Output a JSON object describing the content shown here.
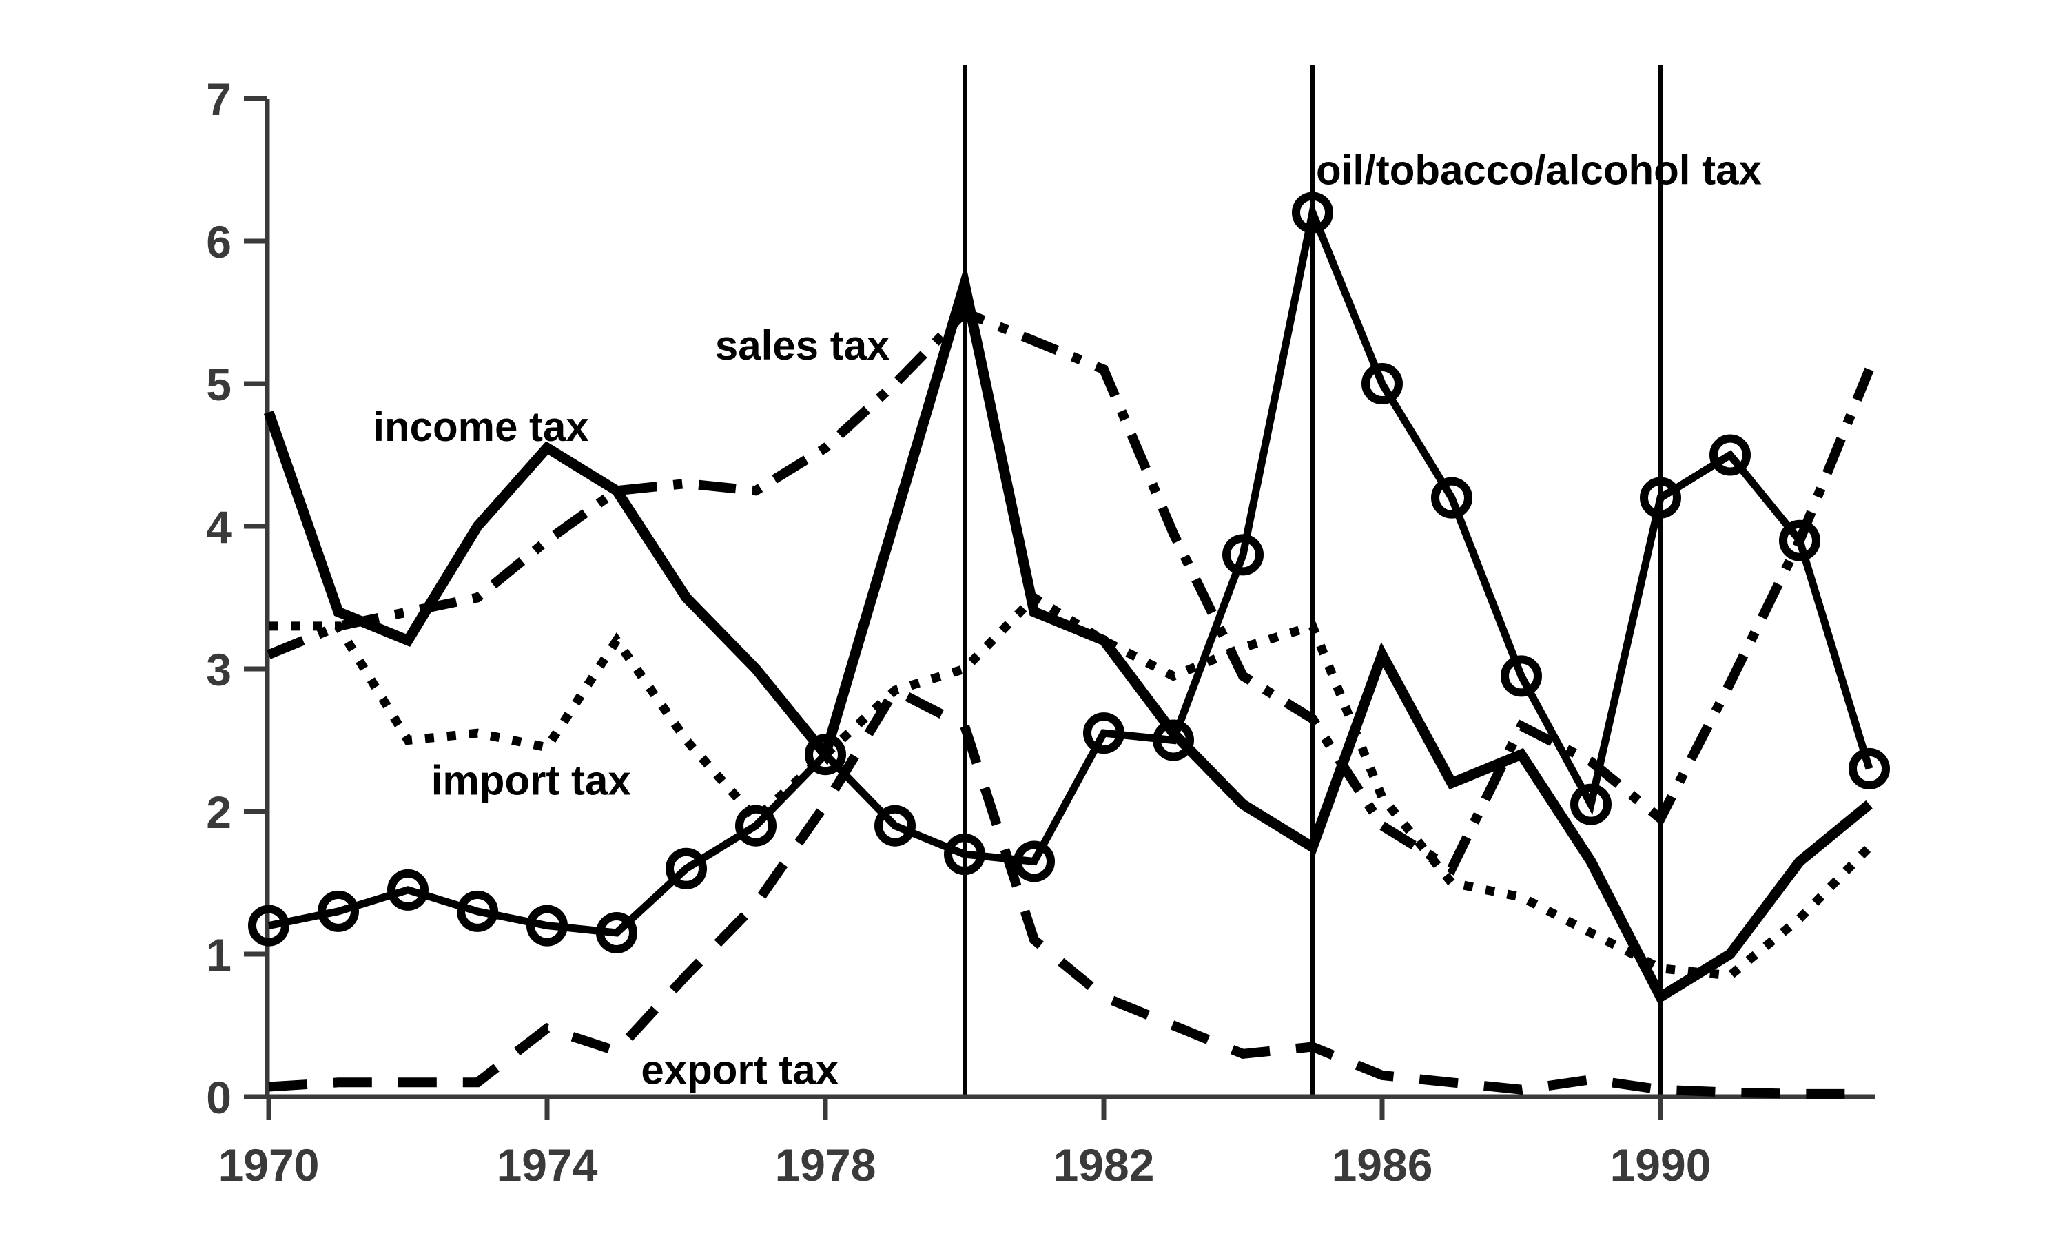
{
  "chart_data": {
    "type": "line",
    "title": "",
    "xlabel": "",
    "ylabel": "",
    "x": [
      1970,
      1971,
      1972,
      1973,
      1974,
      1975,
      1976,
      1977,
      1978,
      1979,
      1980,
      1981,
      1982,
      1983,
      1984,
      1985,
      1986,
      1987,
      1988,
      1989,
      1990,
      1991,
      1992,
      1993
    ],
    "series": [
      {
        "name": "income_tax",
        "label": "income tax",
        "linestyle": "solid",
        "marker": "none",
        "stroke_width": 15,
        "values": [
          4.8,
          3.4,
          3.2,
          4.0,
          4.55,
          4.25,
          3.5,
          3.0,
          2.4,
          4.05,
          5.7,
          3.4,
          3.2,
          2.55,
          2.05,
          1.75,
          3.1,
          2.2,
          2.4,
          1.65,
          0.7,
          1.0,
          1.65,
          2.05
        ]
      },
      {
        "name": "sales_tax",
        "label": "sales tax",
        "linestyle": "dash-dot",
        "marker": "none",
        "stroke_width": 14,
        "values": [
          3.1,
          3.3,
          3.4,
          3.5,
          3.9,
          4.25,
          4.3,
          4.25,
          4.55,
          5.0,
          5.5,
          5.3,
          5.1,
          3.95,
          2.95,
          2.65,
          1.9,
          1.6,
          2.6,
          2.35,
          1.95,
          2.9,
          3.9,
          5.1
        ]
      },
      {
        "name": "import_tax",
        "label": "import tax",
        "linestyle": "dotted",
        "marker": "none",
        "stroke_width": 13,
        "values": [
          3.3,
          3.3,
          2.5,
          2.55,
          2.45,
          3.2,
          2.5,
          1.95,
          2.4,
          2.85,
          3.0,
          3.5,
          3.2,
          2.95,
          3.15,
          3.3,
          2.1,
          1.5,
          1.4,
          1.15,
          0.9,
          0.85,
          1.25,
          1.75
        ]
      },
      {
        "name": "export_tax",
        "label": "export tax",
        "linestyle": "dashed",
        "marker": "none",
        "stroke_width": 14,
        "values": [
          0.07,
          0.1,
          0.1,
          0.1,
          0.48,
          0.32,
          0.85,
          1.35,
          2.05,
          2.85,
          2.6,
          1.1,
          0.7,
          0.5,
          0.3,
          0.35,
          0.15,
          0.1,
          0.05,
          0.12,
          0.05,
          0.03,
          0.02,
          0.02
        ]
      },
      {
        "name": "oil_tobacco_alcohol_tax",
        "label": "oil/tobacco/alcohol tax",
        "linestyle": "solid",
        "marker": "circle",
        "stroke_width": 11,
        "values": [
          1.2,
          1.3,
          1.45,
          1.3,
          1.2,
          1.15,
          1.6,
          1.9,
          2.4,
          1.9,
          1.7,
          1.65,
          2.55,
          2.5,
          3.8,
          6.2,
          5.0,
          4.2,
          2.95,
          2.05,
          4.2,
          4.5,
          3.9,
          2.3
        ]
      }
    ],
    "annotations": [
      {
        "text": "income tax",
        "x": 1973.05,
        "y": 4.7,
        "anchor": "middle"
      },
      {
        "text": "sales tax",
        "x": 1977.67,
        "y": 5.27,
        "anchor": "middle"
      },
      {
        "text": "import tax",
        "x": 1973.77,
        "y": 2.22,
        "anchor": "middle"
      },
      {
        "text": "export tax",
        "x": 1976.77,
        "y": 0.19,
        "anchor": "middle"
      },
      {
        "text": "oil/tobacco/alcohol tax",
        "x": 1985.05,
        "y": 6.5,
        "anchor": "start"
      }
    ],
    "reference_lines_x": [
      1980,
      1985,
      1990
    ],
    "xticks": [
      1970,
      1974,
      1978,
      1982,
      1986,
      1990
    ],
    "xtick_labels": [
      "1970",
      "1974",
      "1978",
      "1982",
      "1986",
      "1990"
    ],
    "yticks": [
      0,
      1,
      2,
      3,
      4,
      5,
      6,
      7
    ],
    "ytick_labels": [
      "0",
      "1",
      "2",
      "3",
      "4",
      "5",
      "6",
      "7"
    ],
    "xlim": [
      1970,
      1993.1
    ],
    "ylim": [
      0,
      7
    ],
    "grid": false,
    "legend_position": "none",
    "colors": {
      "data_line": "#000000",
      "axis": "#3a3a3a",
      "reference_line": "#000000",
      "background": "#ffffff",
      "text": "#000000"
    }
  }
}
